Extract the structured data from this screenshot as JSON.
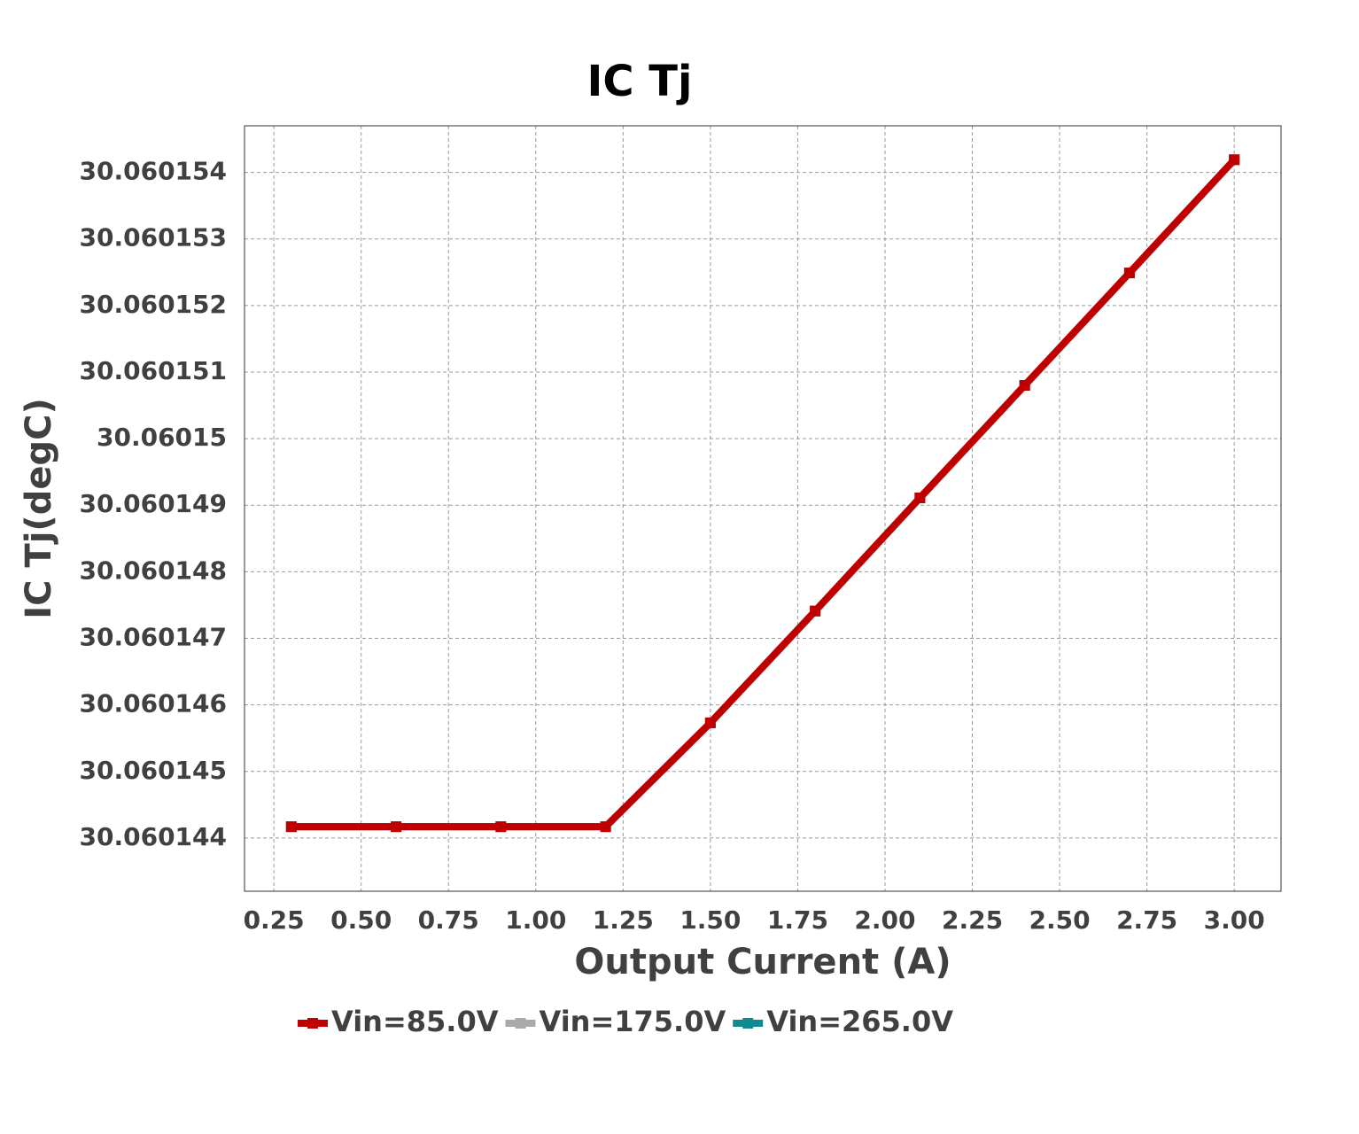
{
  "chart_data": {
    "type": "line",
    "title": "IC Tj",
    "x_label": "Output Current (A)",
    "y_label": "IC Tj(degC)",
    "x": [
      0.3,
      0.6,
      0.9,
      1.2,
      1.5,
      1.8,
      2.1,
      2.4,
      2.7,
      3.0
    ],
    "series": [
      {
        "name": "Vin=85.0V",
        "color": "#c00000",
        "values": [
          30.06014417,
          30.06014417,
          30.06014417,
          30.06014417,
          30.06014573,
          30.06014741,
          30.06014911,
          30.0601508,
          30.06015249,
          30.06015419
        ]
      },
      {
        "name": "Vin=175.0V",
        "color": "#aaaaaa",
        "values": [
          30.06014417,
          30.06014417,
          30.06014417,
          30.06014417,
          30.06014573,
          30.06014741,
          30.06014911,
          30.0601508,
          30.06015249,
          30.06015419
        ]
      },
      {
        "name": "Vin=265.0V",
        "color": "#108a8f",
        "values": [
          30.06014417,
          30.06014417,
          30.06014417,
          30.06014417,
          30.06014573,
          30.06014741,
          30.06014911,
          30.0601508,
          30.06015249,
          30.06015419
        ]
      }
    ],
    "xlim": [
      0.166,
      3.134
    ],
    "xticks": [
      0.25,
      {
        "value": 0.5,
        "label": "0.50"
      },
      0.75,
      {
        "value": 1.0,
        "label": "1.00"
      },
      1.25,
      {
        "value": 1.5,
        "label": "1.50"
      },
      1.75,
      {
        "value": 2.0,
        "label": "2.00"
      },
      2.25,
      {
        "value": 2.5,
        "label": "2.50"
      },
      2.75,
      {
        "value": 3.0,
        "label": "3.00"
      }
    ],
    "ylim": [
      30.0601432,
      30.0601547
    ],
    "yticks": [
      30.060144,
      30.060145,
      30.060146,
      30.060147,
      30.060148,
      30.060149,
      30.06015,
      30.060151,
      30.060152,
      30.060153,
      30.060154
    ],
    "grid": true,
    "legend": "bottom"
  }
}
